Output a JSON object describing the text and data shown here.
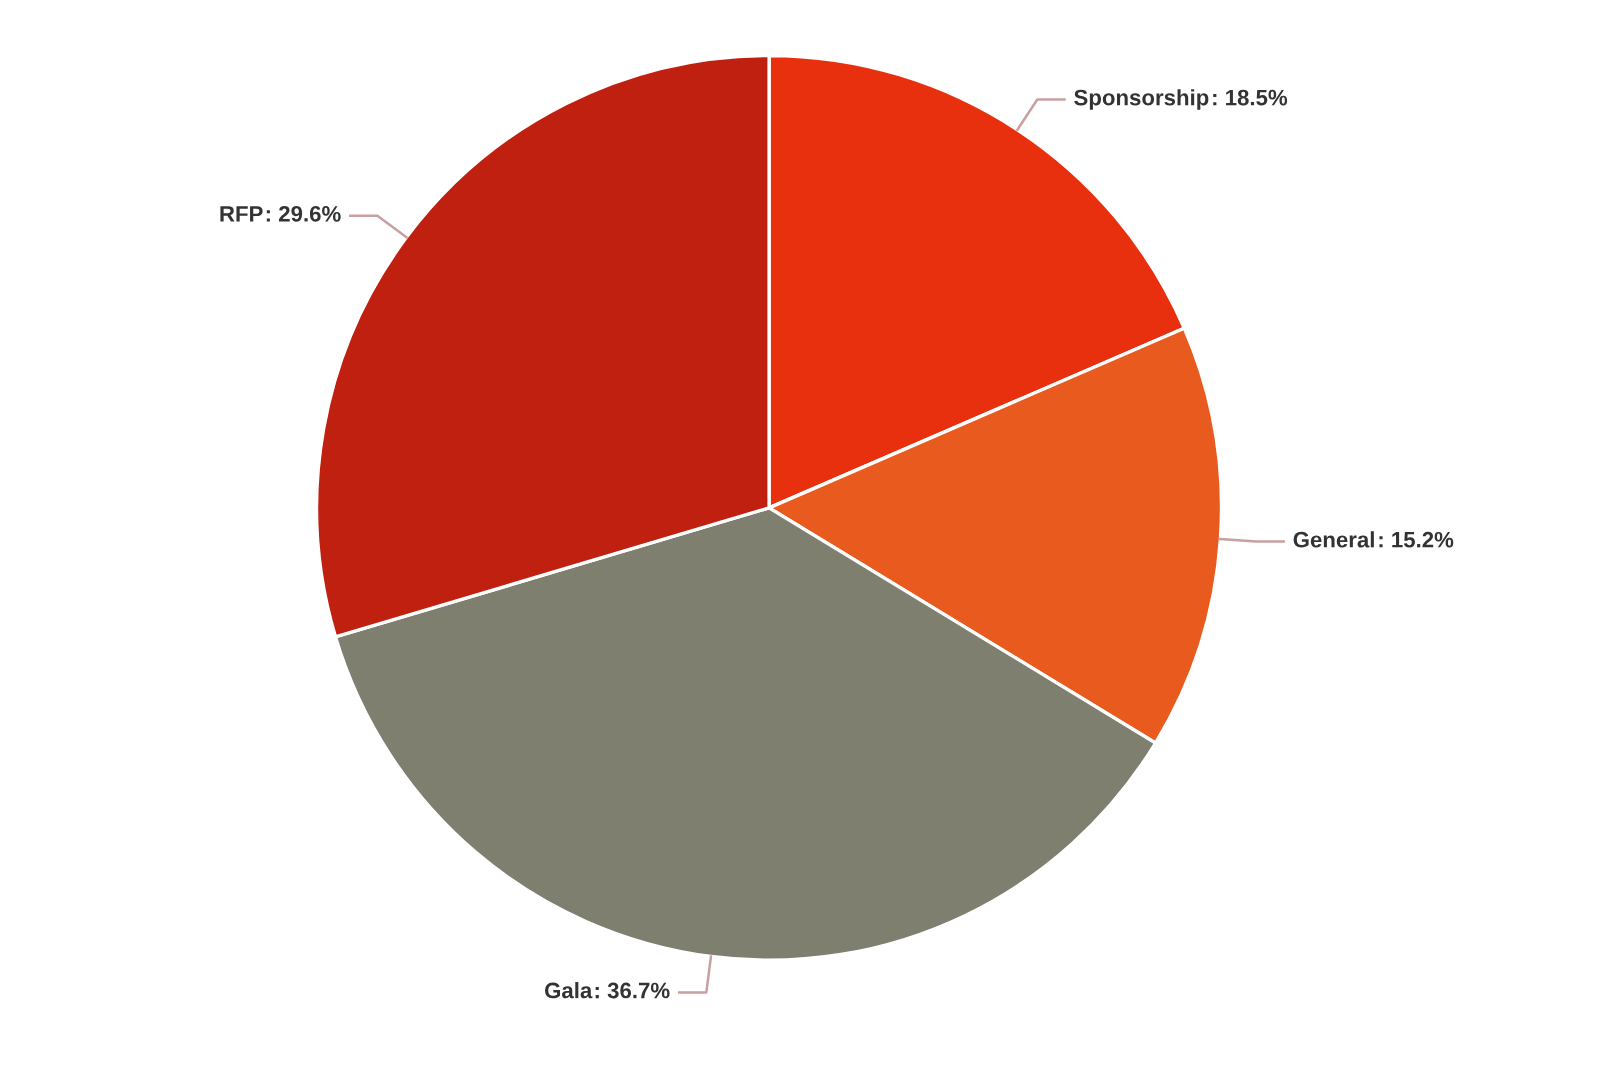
{
  "chart_data": {
    "type": "pie",
    "categories": [
      "Sponsorship",
      "General",
      "Gala",
      "RFP"
    ],
    "values": [
      18.5,
      15.2,
      36.7,
      29.6
    ],
    "colors": [
      "#e8300e",
      "#e85a1e",
      "#7f7f70",
      "#c0200f"
    ],
    "value_labels": [
      ": 18.5%",
      ": 15.2%",
      ": 36.7%",
      ": 29.6%"
    ]
  }
}
